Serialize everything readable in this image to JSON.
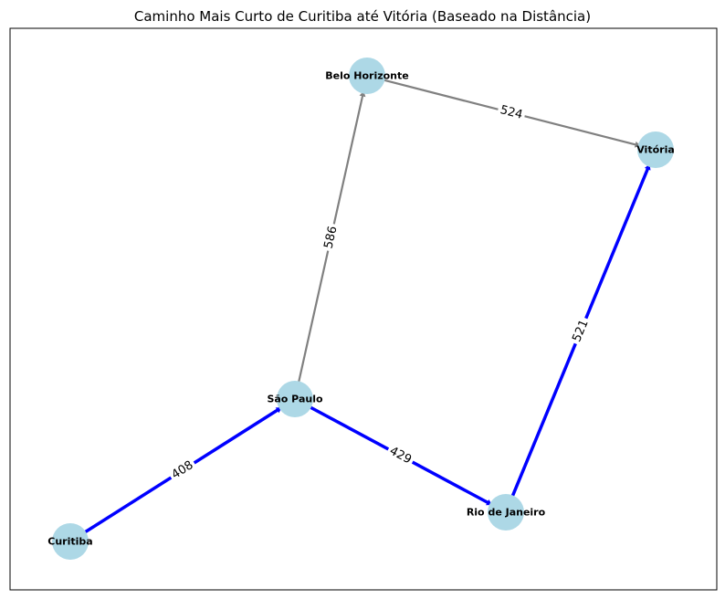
{
  "title": "Caminho Mais Curto de Curitiba até Vitória (Baseado na Distância)",
  "colors": {
    "node_fill": "#add8e6",
    "path_edge": "#0000ff",
    "other_edge": "#808080",
    "background": "#ffffff",
    "frame": "#000000"
  },
  "nodes": [
    {
      "id": "curitiba",
      "label": "Curitiba"
    },
    {
      "id": "sao_paulo",
      "label": "São Paulo"
    },
    {
      "id": "rio",
      "label": "Rio de Janeiro"
    },
    {
      "id": "vitoria",
      "label": "Vitória"
    },
    {
      "id": "bh",
      "label": "Belo Horizonte"
    }
  ],
  "edges": [
    {
      "id": "e1",
      "from": "curitiba",
      "to": "sao_paulo",
      "weight": "408",
      "on_path": true
    },
    {
      "id": "e2",
      "from": "sao_paulo",
      "to": "rio",
      "weight": "429",
      "on_path": true
    },
    {
      "id": "e3",
      "from": "rio",
      "to": "vitoria",
      "weight": "521",
      "on_path": true
    },
    {
      "id": "e4",
      "from": "sao_paulo",
      "to": "bh",
      "weight": "586",
      "on_path": false
    },
    {
      "id": "e5",
      "from": "bh",
      "to": "vitoria",
      "weight": "524",
      "on_path": false
    }
  ]
}
